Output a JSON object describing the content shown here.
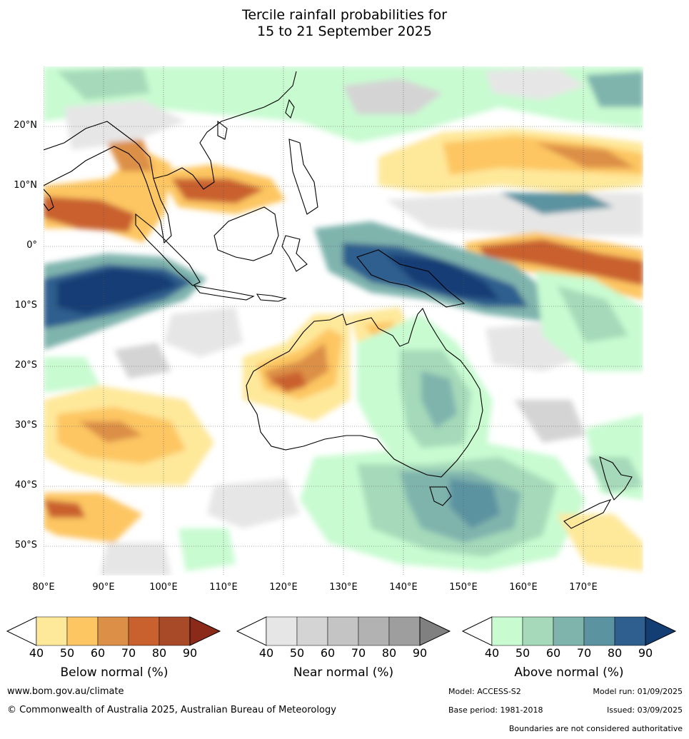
{
  "title": {
    "line1": "Tercile rainfall probabilities for",
    "line2": "15 to 21 September 2025"
  },
  "map": {
    "lat_labels": [
      "20°N",
      "10°N",
      "0°",
      "10°S",
      "20°S",
      "30°S",
      "40°S",
      "50°S"
    ],
    "lon_labels": [
      "80°E",
      "90°E",
      "100°E",
      "110°E",
      "120°E",
      "130°E",
      "140°E",
      "150°E",
      "160°E",
      "170°E"
    ],
    "gridlines": true,
    "colors": {
      "below": [
        "#fee89a",
        "#fdc662",
        "#dc8f46",
        "#c9612f",
        "#a84928",
        "#8b2a18"
      ],
      "near": [
        "#e6e6e6",
        "#d4d4d4",
        "#c4c4c4",
        "#b2b2b2",
        "#9e9e9e",
        "#808080"
      ],
      "above": [
        "#c8fbd0",
        "#a5d9b9",
        "#7fb4ad",
        "#5b93a0",
        "#2f5f8e",
        "#133e74"
      ]
    }
  },
  "legend": {
    "ticks": [
      "40",
      "50",
      "60",
      "70",
      "80",
      "90"
    ],
    "below_label": "Below normal (%)",
    "near_label": "Near normal (%)",
    "above_label": "Above normal (%)"
  },
  "footer": {
    "website": "www.bom.gov.au/climate",
    "copyright": "© Commonwealth of Australia 2025, Australian Bureau of Meteorology",
    "model": "Model: ACCESS-S2",
    "model_run": "Model run: 01/09/2025",
    "base_period": "Base period: 1981-2018",
    "issued": "Issued: 03/09/2025",
    "disclaimer": "Boundaries are not considered authoritative"
  }
}
